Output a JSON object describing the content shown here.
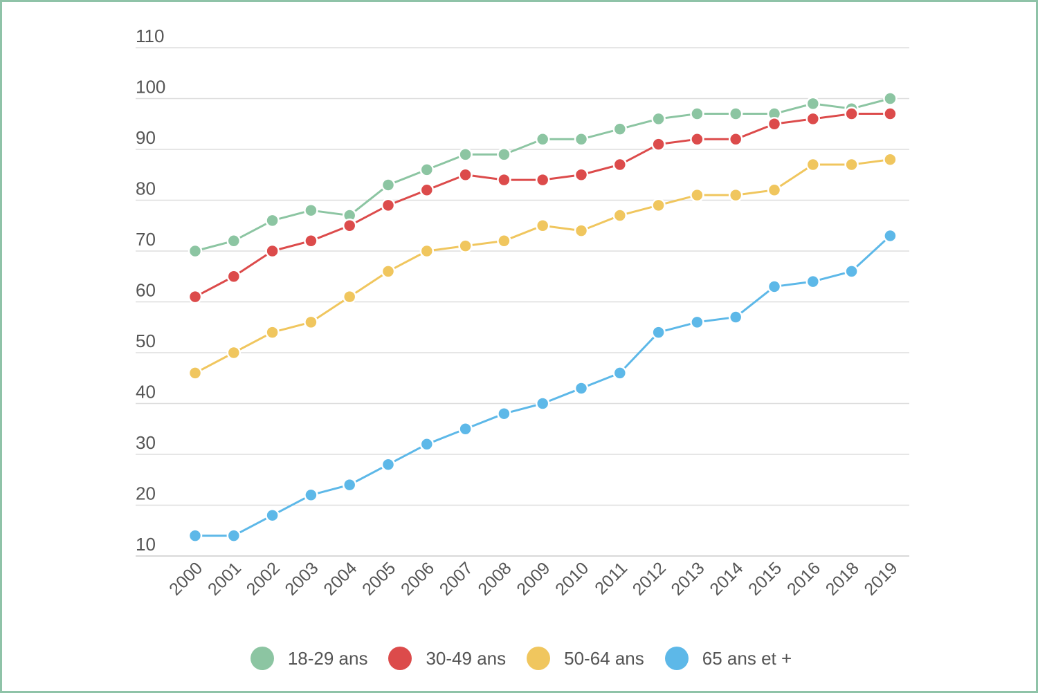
{
  "chart_data": {
    "type": "line",
    "title": "",
    "xlabel": "",
    "ylabel": "",
    "categories": [
      "2000",
      "2001",
      "2002",
      "2003",
      "2004",
      "2005",
      "2006",
      "2007",
      "2008",
      "2009",
      "2010",
      "2011",
      "2012",
      "2013",
      "2014",
      "2015",
      "2016",
      "2018",
      "2019"
    ],
    "y_ticks": [
      10,
      20,
      30,
      40,
      50,
      60,
      70,
      80,
      90,
      100,
      110
    ],
    "ylim": [
      10,
      110
    ],
    "grid": true,
    "legend_position": "bottom",
    "series": [
      {
        "name": "18-29 ans",
        "color": "#8cc5a2",
        "values": [
          70,
          72,
          76,
          78,
          77,
          83,
          86,
          89,
          89,
          92,
          92,
          94,
          96,
          97,
          97,
          97,
          99,
          98,
          100
        ]
      },
      {
        "name": "30-49 ans",
        "color": "#dc4b4b",
        "values": [
          61,
          65,
          70,
          72,
          75,
          79,
          82,
          85,
          84,
          84,
          85,
          87,
          91,
          92,
          92,
          95,
          96,
          97,
          97
        ]
      },
      {
        "name": "50-64 ans",
        "color": "#f0c65e",
        "values": [
          46,
          50,
          54,
          56,
          61,
          66,
          70,
          71,
          72,
          75,
          74,
          77,
          79,
          81,
          81,
          82,
          87,
          87,
          88
        ]
      },
      {
        "name": "65 ans et +",
        "color": "#5db8e8",
        "values": [
          14,
          14,
          18,
          22,
          24,
          28,
          32,
          35,
          38,
          40,
          43,
          46,
          54,
          56,
          57,
          63,
          64,
          66,
          73
        ]
      }
    ]
  }
}
